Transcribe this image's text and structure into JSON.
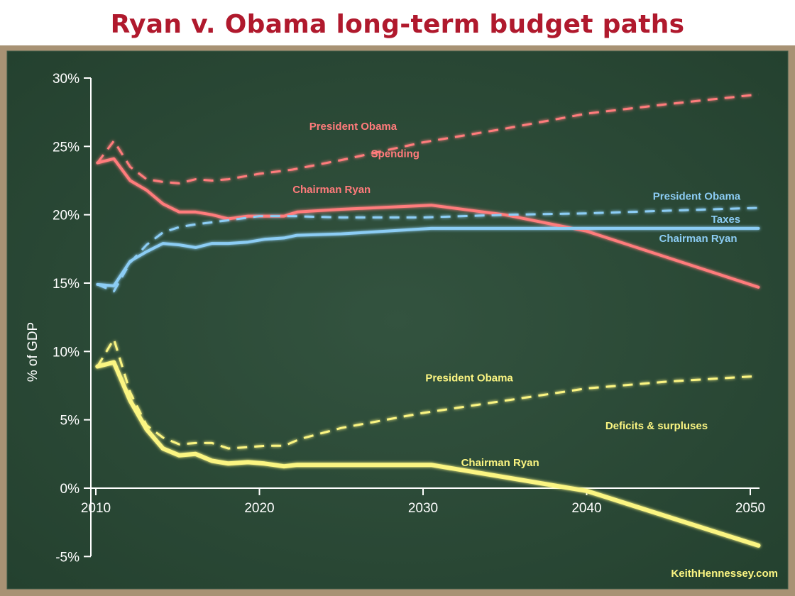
{
  "title": "Ryan v. Obama long-term budget paths",
  "watermark": "KeithHennessey.com",
  "chart_data": {
    "type": "line",
    "ylabel": "% of GDP",
    "xlabel": "",
    "xlim": [
      2010,
      2050
    ],
    "ylim": [
      -5,
      30
    ],
    "x_ticks": [
      {
        "value": 2010,
        "label": "2010"
      },
      {
        "value": 2020,
        "label": "2020"
      },
      {
        "value": 2030,
        "label": "2030"
      },
      {
        "value": 2040,
        "label": "2040"
      },
      {
        "value": 2050,
        "label": "2050"
      }
    ],
    "y_ticks": [
      {
        "value": 30,
        "label": "30%"
      },
      {
        "value": 25,
        "label": "25%"
      },
      {
        "value": 20,
        "label": "20%"
      },
      {
        "value": 15,
        "label": "15%"
      },
      {
        "value": 10,
        "label": "10%"
      },
      {
        "value": 5,
        "label": "5%"
      },
      {
        "value": 0,
        "label": "0%"
      },
      {
        "value": -5,
        "label": "-5%"
      }
    ],
    "series": [
      {
        "name": "Spending — President Obama",
        "color": "#ff7b7b",
        "dash": true,
        "points": [
          [
            2010.1,
            23.8
          ],
          [
            2011.1,
            25.4
          ],
          [
            2012.1,
            23.5
          ],
          [
            2013.1,
            22.6
          ],
          [
            2014.1,
            22.4
          ],
          [
            2015.1,
            22.3
          ],
          [
            2016.1,
            22.6
          ],
          [
            2017.1,
            22.5
          ],
          [
            2018.1,
            22.6
          ],
          [
            2020,
            23.0
          ],
          [
            2022,
            23.3
          ],
          [
            2025,
            24.0
          ],
          [
            2030,
            25.3
          ],
          [
            2035,
            26.3
          ],
          [
            2040,
            27.4
          ],
          [
            2045,
            28.1
          ],
          [
            2050.5,
            28.8
          ]
        ]
      },
      {
        "name": "Spending — Chairman Ryan",
        "color": "#ff7b7b",
        "dash": false,
        "points": [
          [
            2010.1,
            23.8
          ],
          [
            2011.1,
            24.1
          ],
          [
            2012.1,
            22.5
          ],
          [
            2013.1,
            21.8
          ],
          [
            2014.1,
            20.8
          ],
          [
            2015.1,
            20.2
          ],
          [
            2016.1,
            20.2
          ],
          [
            2017.1,
            20.0
          ],
          [
            2018.1,
            19.7
          ],
          [
            2019.3,
            19.9
          ],
          [
            2020.3,
            19.9
          ],
          [
            2021.5,
            19.9
          ],
          [
            2022.3,
            20.2
          ],
          [
            2025,
            20.4
          ],
          [
            2030.5,
            20.7
          ],
          [
            2035,
            20.0
          ],
          [
            2040,
            18.8
          ],
          [
            2050.5,
            14.7
          ]
        ]
      },
      {
        "name": "Taxes — President Obama",
        "color": "#8ccdf5",
        "dash": true,
        "points": [
          [
            2010.1,
            14.9
          ],
          [
            2011.1,
            14.4
          ],
          [
            2012.1,
            16.5
          ],
          [
            2013.1,
            17.8
          ],
          [
            2014.1,
            18.7
          ],
          [
            2015.1,
            19.1
          ],
          [
            2016.1,
            19.3
          ],
          [
            2018.1,
            19.6
          ],
          [
            2020,
            19.9
          ],
          [
            2022,
            19.9
          ],
          [
            2025,
            19.8
          ],
          [
            2030,
            19.8
          ],
          [
            2035,
            20.0
          ],
          [
            2040,
            20.1
          ],
          [
            2045,
            20.3
          ],
          [
            2050.5,
            20.5
          ]
        ]
      },
      {
        "name": "Taxes — Chairman Ryan",
        "color": "#8ccdf5",
        "dash": false,
        "points": [
          [
            2010.1,
            14.9
          ],
          [
            2011.1,
            14.8
          ],
          [
            2012.1,
            16.6
          ],
          [
            2013.1,
            17.3
          ],
          [
            2014.1,
            17.9
          ],
          [
            2015.1,
            17.8
          ],
          [
            2016.1,
            17.6
          ],
          [
            2017.1,
            17.9
          ],
          [
            2018.1,
            17.9
          ],
          [
            2019.3,
            18.0
          ],
          [
            2020.3,
            18.2
          ],
          [
            2021.5,
            18.3
          ],
          [
            2022.3,
            18.5
          ],
          [
            2025,
            18.6
          ],
          [
            2030.5,
            19.0
          ],
          [
            2035,
            19.0
          ],
          [
            2040,
            19.0
          ],
          [
            2050.5,
            19.0
          ]
        ]
      },
      {
        "name": "Deficits & surpluses — President Obama",
        "color": "#fbf582",
        "dash": true,
        "points": [
          [
            2010.1,
            8.9
          ],
          [
            2011.1,
            10.9
          ],
          [
            2012.1,
            7.0
          ],
          [
            2013.1,
            4.6
          ],
          [
            2014.1,
            3.7
          ],
          [
            2015.1,
            3.2
          ],
          [
            2016.1,
            3.3
          ],
          [
            2017.1,
            3.3
          ],
          [
            2018.1,
            2.9
          ],
          [
            2019.3,
            3.0
          ],
          [
            2020.3,
            3.1
          ],
          [
            2021.5,
            3.1
          ],
          [
            2022.5,
            3.6
          ],
          [
            2025,
            4.4
          ],
          [
            2030,
            5.5
          ],
          [
            2035,
            6.4
          ],
          [
            2040,
            7.3
          ],
          [
            2045,
            7.8
          ],
          [
            2050.5,
            8.2
          ]
        ]
      },
      {
        "name": "Deficits & surpluses — Chairman Ryan",
        "color": "#fbf582",
        "dash": false,
        "points": [
          [
            2010.1,
            8.9
          ],
          [
            2011.1,
            9.2
          ],
          [
            2012.1,
            6.4
          ],
          [
            2013.1,
            4.3
          ],
          [
            2014.1,
            2.9
          ],
          [
            2015.1,
            2.4
          ],
          [
            2016.1,
            2.5
          ],
          [
            2017.1,
            2.0
          ],
          [
            2018.1,
            1.8
          ],
          [
            2019.3,
            1.9
          ],
          [
            2020.3,
            1.8
          ],
          [
            2021.5,
            1.6
          ],
          [
            2022.3,
            1.7
          ],
          [
            2025,
            1.7
          ],
          [
            2030.5,
            1.7
          ],
          [
            2035,
            0.8
          ],
          [
            2040,
            -0.2
          ],
          [
            2050.5,
            -4.2
          ]
        ]
      }
    ],
    "annotations": [
      {
        "text": "President Obama",
        "color": "#ff7b7b",
        "x": 2028.4,
        "y": 26.2,
        "anchor": "end"
      },
      {
        "text": "Spending",
        "color": "#ff7b7b",
        "x": 2028.3,
        "y": 24.2,
        "anchor": "middle"
      },
      {
        "text": "Chairman Ryan",
        "color": "#ff7b7b",
        "x": 2026.8,
        "y": 21.6,
        "anchor": "end"
      },
      {
        "text": "President Obama",
        "color": "#8ccdf5",
        "x": 2049.4,
        "y": 21.1,
        "anchor": "end"
      },
      {
        "text": "Taxes",
        "color": "#8ccdf5",
        "x": 2049.4,
        "y": 19.4,
        "anchor": "end"
      },
      {
        "text": "Chairman Ryan",
        "color": "#8ccdf5",
        "x": 2049.2,
        "y": 18.0,
        "anchor": "end"
      },
      {
        "text": "President Obama",
        "color": "#fbf582",
        "x": 2035.5,
        "y": 7.8,
        "anchor": "end"
      },
      {
        "text": "Deficits & surpluses",
        "color": "#fbf582",
        "x": 2047.4,
        "y": 4.3,
        "anchor": "end"
      },
      {
        "text": "Chairman Ryan",
        "color": "#fbf582",
        "x": 2037.1,
        "y": 1.6,
        "anchor": "end"
      }
    ]
  }
}
